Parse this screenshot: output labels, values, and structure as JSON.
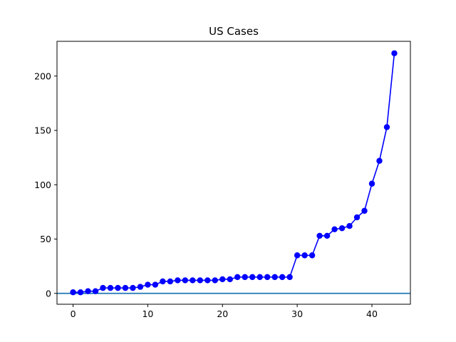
{
  "chart_data": {
    "type": "line",
    "title": "US Cases",
    "xlabel": "",
    "ylabel": "",
    "xlim": [
      -2.15,
      45.15
    ],
    "ylim": [
      -10,
      232
    ],
    "xticks": [
      0,
      10,
      20,
      30,
      40
    ],
    "yticks": [
      0,
      50,
      100,
      150,
      200
    ],
    "grid": false,
    "legend": "none",
    "series": [
      {
        "color": "#0000ff",
        "marker": "circle",
        "x": [
          0,
          1,
          2,
          3,
          4,
          5,
          6,
          7,
          8,
          9,
          10,
          11,
          12,
          13,
          14,
          15,
          16,
          17,
          18,
          19,
          20,
          21,
          22,
          23,
          24,
          25,
          26,
          27,
          28,
          29,
          30,
          31,
          32,
          33,
          34,
          35,
          36,
          37,
          38,
          39,
          40,
          41,
          42,
          43
        ],
        "values": [
          1,
          1,
          2,
          2,
          5,
          5,
          5,
          5,
          5,
          6,
          8,
          8,
          11,
          11,
          12,
          12,
          12,
          12,
          12,
          12,
          13,
          13,
          15,
          15,
          15,
          15,
          15,
          15,
          15,
          15,
          35,
          35,
          35,
          53,
          53,
          59,
          60,
          62,
          70,
          76,
          101,
          122,
          153,
          221
        ]
      }
    ],
    "reference_lines": [
      {
        "orientation": "horizontal",
        "y": 0,
        "color": "#1f77b4"
      }
    ]
  }
}
